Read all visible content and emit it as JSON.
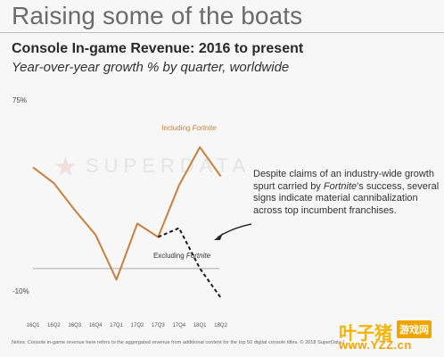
{
  "slide_title": "Raising some of the boats",
  "notes": "Notes: Console in-game revenue here refers to the aggregated revenue from additional content for the top 50 digital console titles. © 2018 SuperData I",
  "annotation": {
    "before": "Despite claims of an industry-wide growth spurt carried by ",
    "italic": "Fortnite",
    "after": "'s success, several signs indicate material cannibalization across top incumbent franchises."
  },
  "watermark": {
    "brand": "SUPERDATA",
    "site_cn": "叶子猪",
    "site_badge": "游戏网",
    "site_url": "www.YZZ.cn"
  },
  "colors": {
    "including_line": "#c97e3b",
    "excluding_line": "#1a1a1a",
    "zero_line": "#a8a8a8",
    "label_orange": "#c97e3b"
  },
  "chart_data": {
    "type": "line",
    "title": "Console In-game Revenue: 2016 to present",
    "subtitle": "Year-over-year growth % by quarter, worldwide",
    "xlabel": "",
    "ylabel": "",
    "categories": [
      "16Q1",
      "16Q2",
      "16Q3",
      "16Q4",
      "17Q1",
      "17Q2",
      "17Q3",
      "17Q4",
      "18Q1",
      "18Q2"
    ],
    "y_tick_labels": [
      "75%",
      "-10%"
    ],
    "ylim": [
      -10,
      75
    ],
    "zero_line": 0,
    "grid": false,
    "legend": "inline labels",
    "series": [
      {
        "name_prefix": "Including ",
        "name_italic": "Fortnite",
        "style": "solid",
        "values": [
          45,
          38,
          26,
          15,
          -5,
          20,
          14,
          37,
          54,
          41
        ]
      },
      {
        "name_prefix": "Excluding ",
        "name_italic": "Fortnite",
        "style": "dashed",
        "values": [
          null,
          null,
          null,
          null,
          null,
          null,
          14,
          18,
          0,
          -13
        ]
      }
    ]
  }
}
